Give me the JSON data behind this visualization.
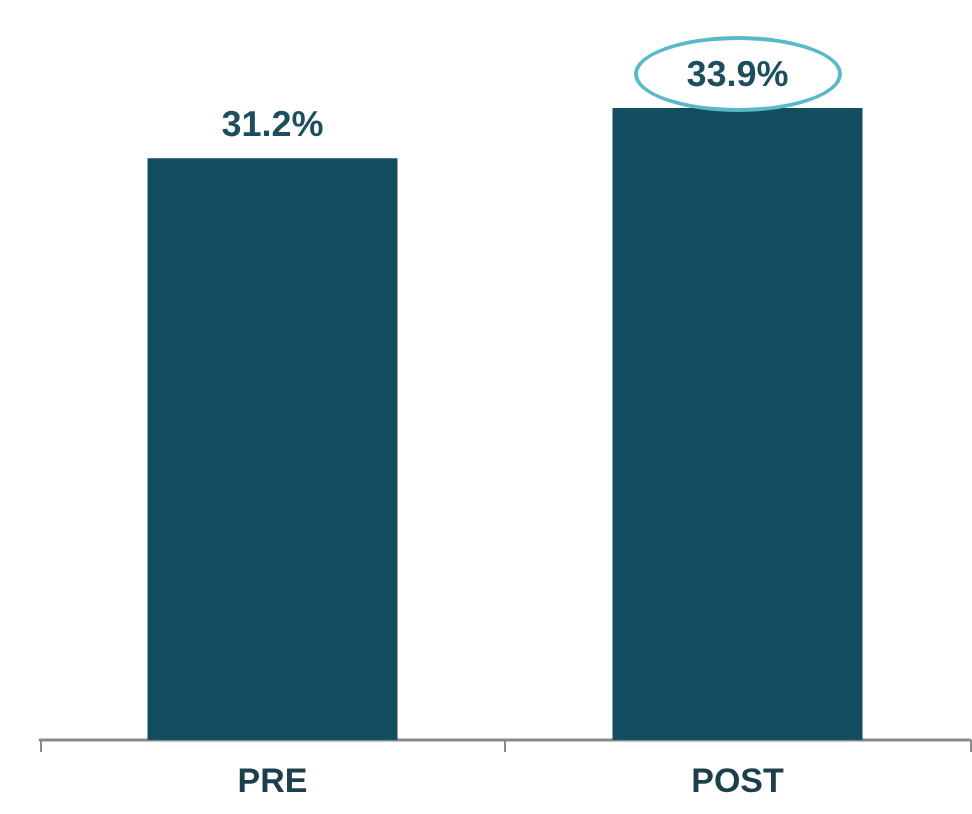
{
  "chart_data": {
    "type": "bar",
    "categories": [
      "PRE",
      "POST"
    ],
    "values": [
      31.2,
      33.9
    ],
    "color": "#124e5f",
    "data_labels": true,
    "value_labels": [
      "31.2%",
      "33.9%"
    ]
  }
}
